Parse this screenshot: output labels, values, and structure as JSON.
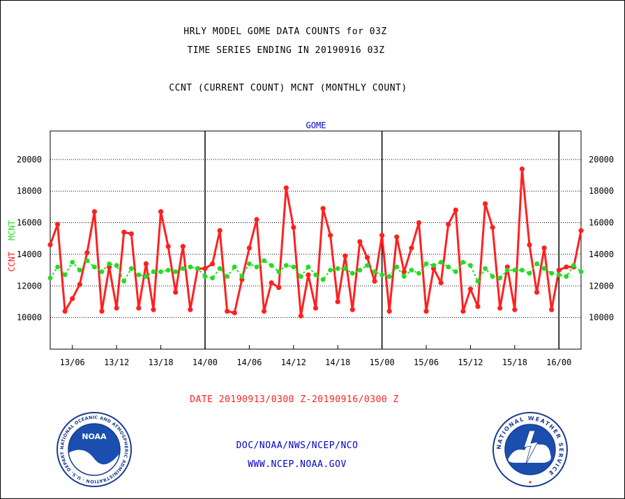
{
  "header": {
    "line1": "HRLY MODEL GOME DATA COUNTS for 03Z",
    "line2": "TIME SERIES ENDING IN 20190916 03Z",
    "line3": "CCNT (CURRENT COUNT) MCNT (MONTHLY COUNT)"
  },
  "footer": {
    "date_range": "DATE 20190913/0300 Z-20190916/0300 Z",
    "org": "DOC/NOAA/NWS/NCEP/NCO",
    "website": "WWW.NCEP.NOAA.GOV"
  },
  "logos": {
    "noaa": "NOAA",
    "noaa_ring": "NATIONAL OCEANIC AND ATMOSPHERIC ADMINISTRATION · U.S. DEPARTMENT OF COMMERCE",
    "nws_ring": "NATIONAL WEATHER SERVICE"
  },
  "colors": {
    "ccnt": "#ff2020",
    "mcnt": "#22dd22",
    "title": "#0000cc",
    "text": "#000000",
    "footer_red": "#ff2020",
    "footer_blue": "#0000cc"
  },
  "chart_data": {
    "type": "line",
    "title": "GOME",
    "ylabel_left_red": "CCNT",
    "ylabel_left_green": "MCNT",
    "ylim": [
      8000,
      21800
    ],
    "yticks": [
      10000,
      12000,
      14000,
      16000,
      18000,
      20000
    ],
    "ytick_labels": [
      "10000",
      "12000",
      "14000",
      "16000",
      "18000",
      "20000"
    ],
    "xlim": [
      0,
      72
    ],
    "xticks": [
      3,
      9,
      15,
      21,
      27,
      33,
      39,
      45,
      51,
      57,
      63,
      69
    ],
    "xtick_labels": [
      "13/06",
      "13/12",
      "13/18",
      "14/00",
      "14/06",
      "14/12",
      "14/18",
      "15/00",
      "15/06",
      "15/12",
      "15/18",
      "16/00"
    ],
    "day_boundaries": [
      21,
      45,
      69
    ],
    "grid": true,
    "x_hours": [
      0,
      1,
      2,
      3,
      4,
      5,
      6,
      7,
      8,
      9,
      10,
      11,
      12,
      13,
      14,
      15,
      16,
      17,
      18,
      19,
      20,
      21,
      22,
      23,
      24,
      25,
      26,
      27,
      28,
      29,
      30,
      31,
      32,
      33,
      34,
      35,
      36,
      37,
      38,
      39,
      40,
      41,
      42,
      43,
      44,
      45,
      46,
      47,
      48,
      49,
      50,
      51,
      52,
      53,
      54,
      55,
      56,
      57,
      58,
      59,
      60,
      61,
      62,
      63,
      64,
      65,
      66,
      67,
      68,
      69,
      70,
      71,
      72
    ],
    "series": [
      {
        "name": "CCNT",
        "values": [
          14600,
          15900,
          10400,
          11200,
          12100,
          14100,
          16700,
          10400,
          13200,
          10600,
          15400,
          15300,
          10600,
          13400,
          10500,
          16700,
          14500,
          11600,
          14500,
          10500,
          13100,
          13100,
          13400,
          15500,
          10400,
          10300,
          12400,
          14400,
          16200,
          10400,
          12200,
          11900,
          18200,
          15700,
          10100,
          12700,
          10600,
          16900,
          15200,
          11000,
          13900,
          10500,
          14800,
          13800,
          12300,
          15200,
          10400,
          15100,
          12900,
          14400,
          16000,
          10400,
          13100,
          12200,
          15900,
          16800,
          10400,
          11800,
          10700,
          17200,
          15700,
          10600,
          13200,
          10500,
          19400,
          14600,
          11600,
          14400,
          10500,
          13000,
          13200,
          13200,
          15500
        ]
      },
      {
        "name": "MCNT",
        "values": [
          12500,
          13200,
          12700,
          13500,
          13000,
          13600,
          13200,
          12900,
          13400,
          13300,
          12300,
          13100,
          12700,
          12600,
          12900,
          12900,
          13000,
          12900,
          13100,
          13200,
          13100,
          12600,
          12500,
          13100,
          12600,
          13200,
          12600,
          13400,
          13200,
          13600,
          13300,
          12900,
          13300,
          13200,
          12600,
          13200,
          12700,
          12400,
          13000,
          13100,
          13100,
          12800,
          13000,
          13300,
          12900,
          12700,
          12600,
          13200,
          12600,
          13000,
          12800,
          13400,
          13300,
          13500,
          13200,
          12900,
          13500,
          13300,
          12300,
          13100,
          12600,
          12500,
          13000,
          13000,
          13000,
          12800,
          13400,
          13100,
          12800,
          12700,
          12600,
          13300,
          12900
        ]
      }
    ]
  }
}
